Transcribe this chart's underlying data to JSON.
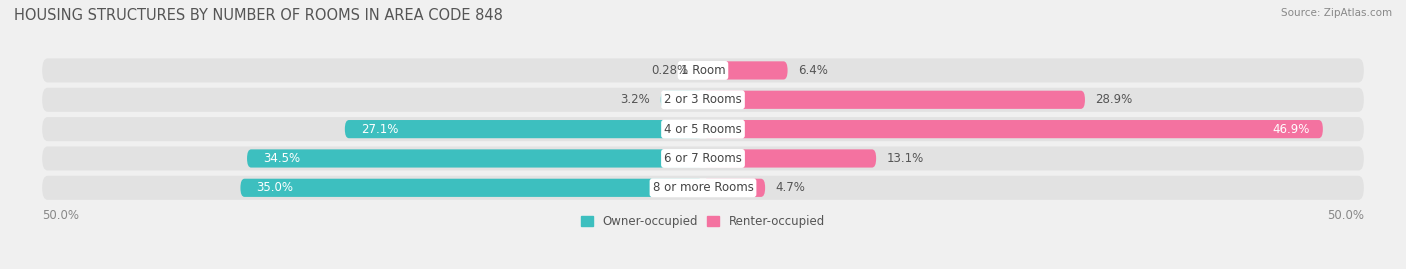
{
  "title": "HOUSING STRUCTURES BY NUMBER OF ROOMS IN AREA CODE 848",
  "source": "Source: ZipAtlas.com",
  "categories": [
    "1 Room",
    "2 or 3 Rooms",
    "4 or 5 Rooms",
    "6 or 7 Rooms",
    "8 or more Rooms"
  ],
  "owner_values": [
    0.28,
    3.2,
    27.1,
    34.5,
    35.0
  ],
  "renter_values": [
    6.4,
    28.9,
    46.9,
    13.1,
    4.7
  ],
  "owner_color": "#3DBFBF",
  "renter_color": "#F472A0",
  "owner_color_light": "#A8DEDE",
  "renter_color_light": "#F9B8D0",
  "owner_label": "Owner-occupied",
  "renter_label": "Renter-occupied",
  "xlim_left": -50,
  "xlim_right": 50,
  "background_color": "#f0f0f0",
  "bar_bg_color": "#e2e2e2",
  "bar_height": 0.62,
  "bg_bar_height": 0.82,
  "title_fontsize": 10.5,
  "value_fontsize": 8.5,
  "cat_fontsize": 8.5,
  "axis_tick_label": "50.0%"
}
